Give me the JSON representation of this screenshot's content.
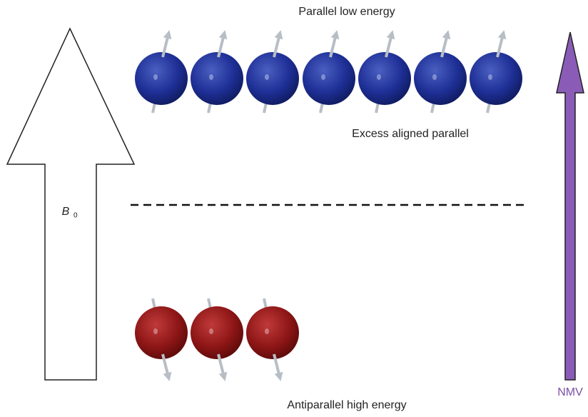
{
  "labels": {
    "top": "Parallel low energy",
    "excess": "Excess aligned parallel",
    "field": "B",
    "field_subscript": "0",
    "nmv": "NMV",
    "bottom": "Antiparallel high energy"
  }
}
